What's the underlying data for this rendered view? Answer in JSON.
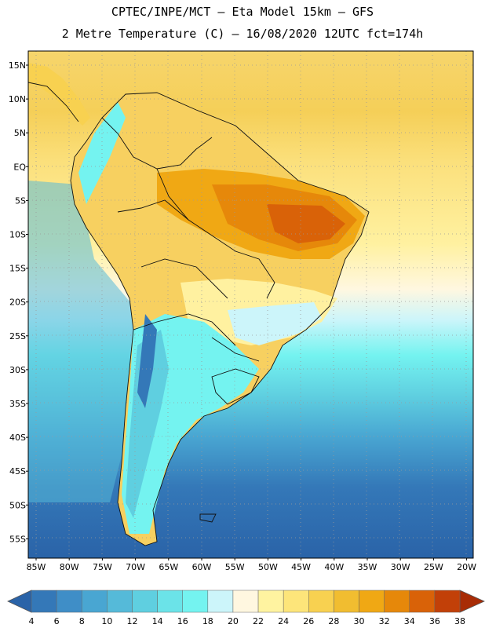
{
  "header": {
    "line1": "CPTEC/INPE/MCT –  Eta Model 15km – GFS",
    "line2": "2 Metre Temperature (C) – 16/08/2020 12UTC fct=174h"
  },
  "map": {
    "lat_labels": [
      "15N",
      "10N",
      "5N",
      "EQ",
      "5S",
      "10S",
      "15S",
      "20S",
      "25S",
      "30S",
      "35S",
      "40S",
      "45S",
      "50S",
      "55S"
    ],
    "lon_labels": [
      "85W",
      "80W",
      "75W",
      "70W",
      "65W",
      "60W",
      "55W",
      "50W",
      "45W",
      "40W",
      "35W",
      "30W",
      "25W",
      "20W"
    ]
  },
  "colorbar": {
    "ticks": [
      "4",
      "6",
      "8",
      "10",
      "12",
      "14",
      "16",
      "18",
      "20",
      "22",
      "24",
      "26",
      "28",
      "30",
      "32",
      "34",
      "36",
      "38"
    ],
    "colors": [
      "#2a63a8",
      "#3478b8",
      "#3f8ec7",
      "#49a6d2",
      "#55bad9",
      "#5fcfe0",
      "#6be3e8",
      "#74f3f0",
      "#ccf5fa",
      "#fff7e0",
      "#fff3a0",
      "#fde57a",
      "#f8d150",
      "#f1bd30",
      "#f0a814",
      "#e6880a",
      "#d96208",
      "#c24008",
      "#a82c06"
    ]
  }
}
